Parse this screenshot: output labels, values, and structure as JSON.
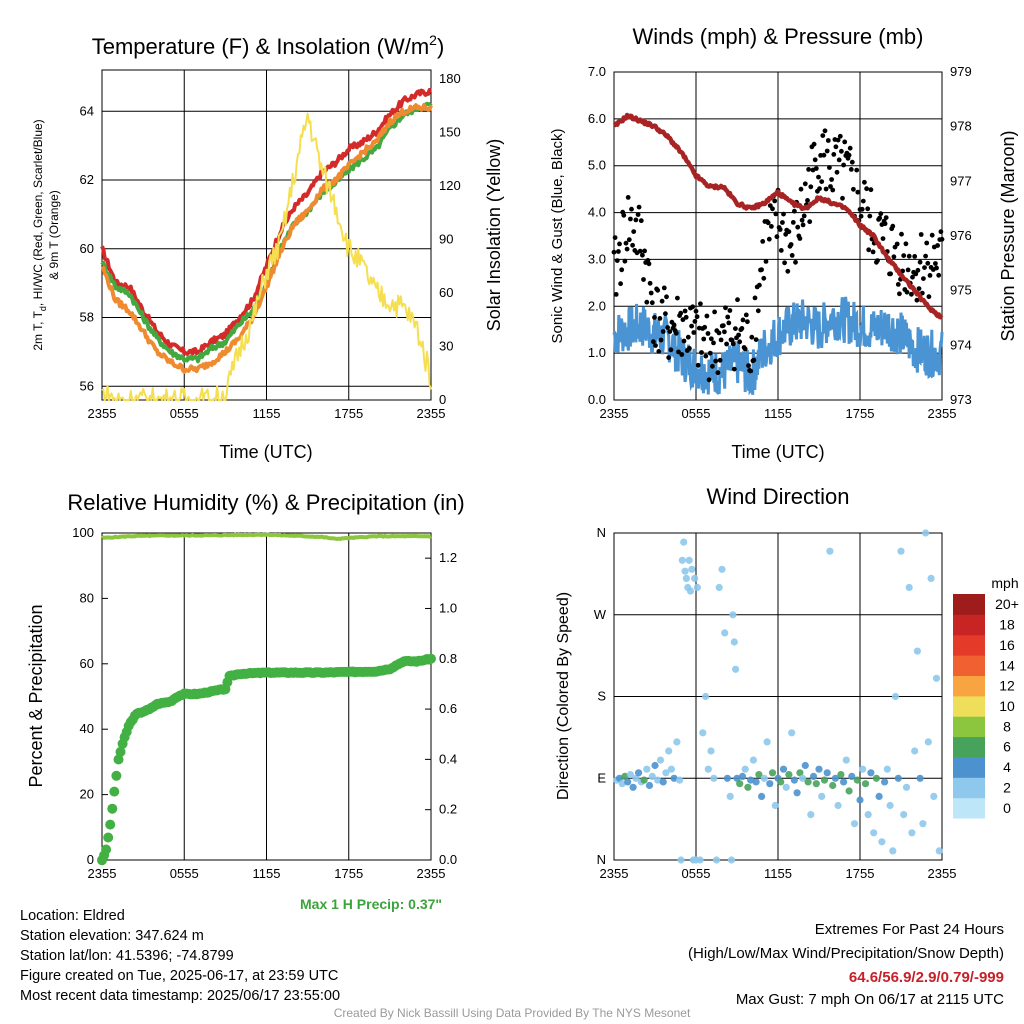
{
  "chart_data": [
    {
      "type": "line",
      "title_main": "Temperature (F) & Insolation (W/m",
      "title_sup": "2",
      "title_close": ")",
      "xlabel": "Time (UTC)",
      "ylabel_lines": [
        "2m T, T",
        "d",
        ", HI/WC (Red, Green, Scarlet/Blue)",
        "& 9m T (Orange)"
      ],
      "y2label": "Solar Insolation (Yellow)",
      "x_ticks": [
        "2355",
        "0555",
        "1155",
        "1755",
        "2355"
      ],
      "y_ticks": [
        "56",
        "58",
        "60",
        "62",
        "64"
      ],
      "y2_ticks": [
        "0",
        "30",
        "60",
        "90",
        "120",
        "150",
        "180"
      ],
      "ylim": [
        55.6,
        65.2
      ],
      "y2lim": [
        0,
        185
      ],
      "x_hours": [
        0,
        1,
        2,
        3,
        4,
        5,
        6,
        7,
        8,
        9,
        10,
        11,
        12,
        13,
        14,
        15,
        16,
        17,
        18,
        19,
        20,
        21,
        22,
        23,
        24
      ],
      "series": [
        {
          "color": "#d42a2a",
          "values": [
            60.0,
            59.0,
            58.9,
            58.2,
            57.6,
            57.2,
            57.0,
            57.0,
            57.3,
            57.5,
            58.0,
            58.5,
            59.5,
            60.5,
            61.2,
            61.6,
            62.2,
            62.5,
            62.9,
            63.1,
            63.4,
            63.9,
            64.3,
            64.5,
            64.6
          ]
        },
        {
          "color": "#44a841",
          "values": [
            59.6,
            58.9,
            58.7,
            58.0,
            57.4,
            57.0,
            56.8,
            56.8,
            57.1,
            57.3,
            57.8,
            58.2,
            59.0,
            60.0,
            60.7,
            61.1,
            61.6,
            61.9,
            62.3,
            62.6,
            62.9,
            63.5,
            63.9,
            64.1,
            64.2
          ]
        },
        {
          "color": "#f08a30",
          "values": [
            59.5,
            58.5,
            58.2,
            57.6,
            57.0,
            56.7,
            56.5,
            56.5,
            56.7,
            57.0,
            57.4,
            58.0,
            58.9,
            59.9,
            60.7,
            61.1,
            61.7,
            62.0,
            62.4,
            62.8,
            63.1,
            63.7,
            64.0,
            64.1,
            64.1
          ]
        },
        {
          "color": "#f5df50",
          "values": [
            4,
            0,
            0,
            0,
            0,
            0,
            0,
            0,
            0,
            3,
            28,
            45,
            72,
            88,
            125,
            160,
            130,
            110,
            85,
            75,
            60,
            55,
            52,
            40,
            12
          ]
        }
      ]
    },
    {
      "type": "scatter",
      "title": "Winds (mph) & Pressure (mb)",
      "xlabel": "Time (UTC)",
      "ylabel": "Sonic Wind & Gust (Blue, Black)",
      "y2label": "Station Pressure (Maroon)",
      "x_ticks": [
        "2355",
        "0555",
        "1155",
        "1755",
        "2355"
      ],
      "y_ticks": [
        "0.0",
        "1.0",
        "2.0",
        "3.0",
        "4.0",
        "5.0",
        "6.0",
        "7.0"
      ],
      "y2_ticks": [
        "973",
        "974",
        "975",
        "976",
        "977",
        "978",
        "979"
      ],
      "ylim": [
        0,
        7
      ],
      "y2lim": [
        973,
        979
      ],
      "x_hours": [
        0,
        1,
        2,
        3,
        4,
        5,
        6,
        7,
        8,
        9,
        10,
        11,
        12,
        13,
        14,
        15,
        16,
        17,
        18,
        19,
        20,
        21,
        22,
        23,
        24
      ],
      "series": [
        {
          "color": "#a82424",
          "values": [
            978.0,
            978.2,
            978.1,
            978.0,
            977.8,
            977.5,
            977.1,
            976.9,
            976.9,
            976.6,
            976.5,
            976.6,
            976.8,
            976.6,
            976.5,
            976.7,
            976.6,
            976.5,
            976.2,
            976.0,
            975.6,
            975.3,
            975.0,
            974.7,
            974.5
          ]
        },
        {
          "color": "#4a94d4",
          "values": [
            1.4,
            1.5,
            1.6,
            1.4,
            1.3,
            0.9,
            0.7,
            0.6,
            0.6,
            0.8,
            0.5,
            1.1,
            1.4,
            1.6,
            1.7,
            1.5,
            1.8,
            1.7,
            1.6,
            1.5,
            1.6,
            1.4,
            1.1,
            1.0,
            1.0
          ]
        },
        {
          "color": "#000000",
          "values": [
            2.6,
            3.8,
            3.4,
            1.8,
            1.5,
            1.6,
            1.3,
            1.2,
            1.3,
            1.5,
            1.1,
            3.3,
            3.8,
            3.2,
            4.2,
            5.3,
            4.9,
            4.8,
            4.2,
            3.6,
            3.3,
            3.0,
            2.8,
            3.0,
            3.0
          ]
        }
      ]
    },
    {
      "type": "line",
      "title": "Relative Humidity (%) & Precipitation (in)",
      "ylabel": "Percent & Precipitation",
      "x_ticks": [
        "2355",
        "0555",
        "1155",
        "1755",
        "2355"
      ],
      "y_ticks": [
        "0",
        "20",
        "40",
        "60",
        "80",
        "100"
      ],
      "y2_ticks": [
        "0.0",
        "0.2",
        "0.4",
        "0.6",
        "0.8",
        "1.0",
        "1.2"
      ],
      "ylim": [
        0,
        100
      ],
      "y2lim": [
        0,
        1.3
      ],
      "max_precip_label": "Max 1 H Precip: 0.37\"",
      "series": [
        {
          "color": "#8cc63e",
          "x_hours": [
            0,
            2,
            4,
            8,
            12,
            16,
            17,
            20,
            24
          ],
          "values": [
            98.5,
            99.0,
            99.2,
            99.3,
            99.5,
            98.8,
            98.2,
            99.0,
            99.0
          ]
        },
        {
          "color": "#42b042",
          "x_hours": [
            0,
            0.3,
            0.6,
            0.9,
            1.2,
            1.6,
            2.0,
            2.5,
            3.0,
            3.5,
            4.0,
            5.0,
            5.5,
            6.0,
            7.0,
            8.0,
            9.0,
            9.3,
            10.0,
            12.0,
            16.0,
            20.0,
            21.0,
            22.0,
            23.0,
            24.0
          ],
          "values": [
            0,
            0.04,
            0.14,
            0.27,
            0.4,
            0.48,
            0.54,
            0.58,
            0.59,
            0.6,
            0.62,
            0.63,
            0.65,
            0.66,
            0.66,
            0.67,
            0.68,
            0.73,
            0.74,
            0.745,
            0.745,
            0.75,
            0.76,
            0.79,
            0.79,
            0.8
          ]
        }
      ]
    },
    {
      "type": "scatter",
      "title": "Wind Direction",
      "ylabel": "Direction (Colored By Speed)",
      "x_ticks": [
        "2355",
        "0555",
        "1155",
        "1755",
        "2355"
      ],
      "y_ticks": [
        "N",
        "E",
        "S",
        "W",
        "N"
      ],
      "ylim": [
        0,
        360
      ],
      "colorbar_title": "mph",
      "colorbar_labels": [
        "0",
        "2",
        "4",
        "6",
        "8",
        "10",
        "12",
        "14",
        "16",
        "18",
        "20+"
      ],
      "colorbar_colors": [
        "#bde6f8",
        "#8ec8ec",
        "#4c92cf",
        "#47a35b",
        "#8cc63e",
        "#eede5a",
        "#f8a440",
        "#f06030",
        "#e33a2a",
        "#c82424",
        "#9e1c1c"
      ],
      "points": [
        [
          0.2,
          88,
          1
        ],
        [
          0.4,
          90,
          2
        ],
        [
          0.6,
          84,
          1
        ],
        [
          0.8,
          92,
          3
        ],
        [
          1.0,
          86,
          2
        ],
        [
          1.2,
          94,
          1
        ],
        [
          1.4,
          80,
          2
        ],
        [
          1.6,
          90,
          1
        ],
        [
          1.8,
          96,
          2
        ],
        [
          2.0,
          86,
          1
        ],
        [
          2.2,
          88,
          3
        ],
        [
          2.4,
          100,
          1
        ],
        [
          2.6,
          82,
          2
        ],
        [
          2.8,
          92,
          1
        ],
        [
          3.0,
          104,
          2
        ],
        [
          3.2,
          88,
          1
        ],
        [
          3.4,
          110,
          1
        ],
        [
          3.6,
          86,
          2
        ],
        [
          3.8,
          96,
          1
        ],
        [
          4.0,
          120,
          1
        ],
        [
          4.2,
          100,
          1
        ],
        [
          4.4,
          90,
          2
        ],
        [
          4.6,
          130,
          1
        ],
        [
          4.8,
          88,
          1
        ],
        [
          4.9,
          0,
          1
        ],
        [
          5.0,
          330,
          1
        ],
        [
          5.1,
          350,
          1
        ],
        [
          5.2,
          318,
          1
        ],
        [
          5.3,
          310,
          1
        ],
        [
          5.4,
          300,
          1
        ],
        [
          5.5,
          330,
          1
        ],
        [
          5.6,
          296,
          1
        ],
        [
          5.7,
          320,
          1
        ],
        [
          5.8,
          0,
          1
        ],
        [
          5.9,
          310,
          1
        ],
        [
          6.0,
          0,
          1
        ],
        [
          6.1,
          300,
          1
        ],
        [
          6.3,
          0,
          1
        ],
        [
          6.5,
          140,
          1
        ],
        [
          6.7,
          180,
          1
        ],
        [
          6.9,
          100,
          1
        ],
        [
          7.1,
          120,
          1
        ],
        [
          7.3,
          90,
          1
        ],
        [
          7.5,
          0,
          1
        ],
        [
          7.7,
          300,
          1
        ],
        [
          7.9,
          320,
          1
        ],
        [
          8.1,
          250,
          1
        ],
        [
          8.3,
          90,
          2
        ],
        [
          8.5,
          70,
          1
        ],
        [
          8.6,
          0,
          1
        ],
        [
          8.7,
          270,
          1
        ],
        [
          8.8,
          240,
          1
        ],
        [
          8.9,
          210,
          1
        ],
        [
          9.0,
          90,
          2
        ],
        [
          9.2,
          84,
          3
        ],
        [
          9.4,
          92,
          2
        ],
        [
          9.6,
          100,
          1
        ],
        [
          9.8,
          80,
          3
        ],
        [
          10.0,
          88,
          2
        ],
        [
          10.2,
          110,
          1
        ],
        [
          10.4,
          86,
          2
        ],
        [
          10.6,
          94,
          3
        ],
        [
          10.8,
          70,
          2
        ],
        [
          11.0,
          90,
          1
        ],
        [
          11.2,
          130,
          1
        ],
        [
          11.4,
          84,
          2
        ],
        [
          11.6,
          96,
          3
        ],
        [
          11.8,
          60,
          1
        ],
        [
          12.0,
          90,
          2
        ],
        [
          12.2,
          86,
          3
        ],
        [
          12.4,
          100,
          2
        ],
        [
          12.6,
          80,
          1
        ],
        [
          12.8,
          94,
          3
        ],
        [
          13.0,
          140,
          1
        ],
        [
          13.2,
          88,
          2
        ],
        [
          13.4,
          74,
          2
        ],
        [
          13.6,
          96,
          3
        ],
        [
          13.8,
          90,
          1
        ],
        [
          14.0,
          104,
          2
        ],
        [
          14.2,
          86,
          3
        ],
        [
          14.4,
          50,
          1
        ],
        [
          14.6,
          92,
          2
        ],
        [
          14.8,
          84,
          3
        ],
        [
          15.0,
          100,
          2
        ],
        [
          15.2,
          70,
          1
        ],
        [
          15.4,
          88,
          3
        ],
        [
          15.6,
          96,
          2
        ],
        [
          15.8,
          340,
          1
        ],
        [
          16.0,
          82,
          3
        ],
        [
          16.2,
          90,
          2
        ],
        [
          16.4,
          60,
          1
        ],
        [
          16.6,
          94,
          3
        ],
        [
          16.8,
          86,
          2
        ],
        [
          17.0,
          110,
          1
        ],
        [
          17.2,
          76,
          3
        ],
        [
          17.4,
          92,
          2
        ],
        [
          17.6,
          40,
          1
        ],
        [
          17.8,
          88,
          3
        ],
        [
          18.0,
          66,
          2
        ],
        [
          18.2,
          100,
          1
        ],
        [
          18.4,
          84,
          3
        ],
        [
          18.6,
          50,
          1
        ],
        [
          18.8,
          96,
          2
        ],
        [
          19.0,
          30,
          1
        ],
        [
          19.2,
          90,
          3
        ],
        [
          19.4,
          70,
          2
        ],
        [
          19.6,
          20,
          1
        ],
        [
          19.8,
          86,
          2
        ],
        [
          20.0,
          100,
          1
        ],
        [
          20.2,
          60,
          1
        ],
        [
          20.4,
          10,
          1
        ],
        [
          20.6,
          180,
          1
        ],
        [
          20.8,
          90,
          2
        ],
        [
          21.0,
          340,
          1
        ],
        [
          21.2,
          50,
          1
        ],
        [
          21.4,
          80,
          1
        ],
        [
          21.6,
          300,
          1
        ],
        [
          21.8,
          30,
          1
        ],
        [
          22.0,
          120,
          1
        ],
        [
          22.2,
          230,
          1
        ],
        [
          22.4,
          90,
          2
        ],
        [
          22.6,
          40,
          1
        ],
        [
          22.8,
          360,
          1
        ],
        [
          23.0,
          130,
          1
        ],
        [
          23.2,
          310,
          1
        ],
        [
          23.4,
          70,
          1
        ],
        [
          23.6,
          200,
          1
        ],
        [
          23.8,
          10,
          1
        ]
      ]
    }
  ],
  "station": {
    "location": "Location: Eldred",
    "elevation": "Station elevation: 347.624 m",
    "latlon": "Station lat/lon: 41.5396; -74.8799",
    "created": "Figure created on Tue, 2025-06-17, at 23:59 UTC",
    "recent": "Most recent data timestamp: 2025/06/17 23:55:00"
  },
  "extremes": {
    "title": "Extremes For Past 24 Hours",
    "subtitle": "(High/Low/Max Wind/Precipitation/Snow Depth)",
    "values": "64.6/56.9/2.9/0.79/-999",
    "gust": "Max Gust: 7 mph On 06/17 at 2115 UTC"
  },
  "credit": "Created By Nick Bassill Using Data Provided By The NYS Mesonet"
}
